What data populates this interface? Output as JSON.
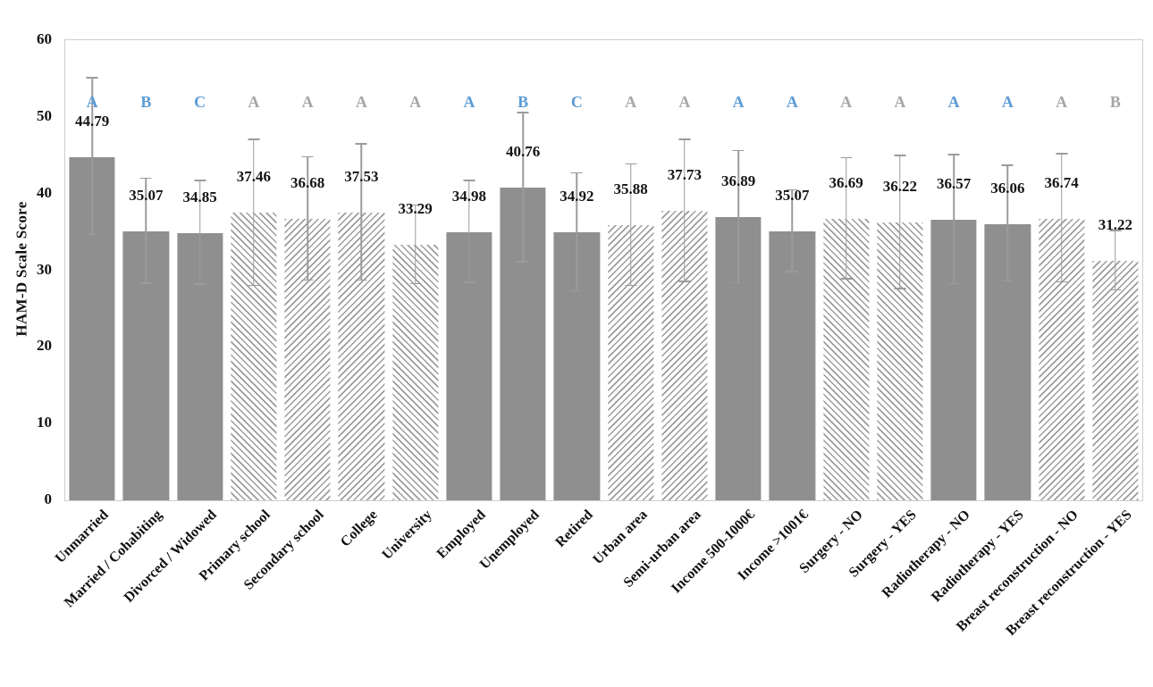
{
  "chart_data": {
    "type": "bar",
    "title": "",
    "xlabel": "",
    "ylabel": "HAM-D Scale Score",
    "ylim": [
      0,
      60
    ],
    "yticks": [
      "0",
      "10",
      "20",
      "30",
      "40",
      "50",
      "60"
    ],
    "grid": false,
    "legend": "none",
    "categories": [
      "Unmarried",
      "Married / Cohabiting",
      "Divorced / Widowed",
      "Primary school",
      "Secondary school",
      "College",
      "University",
      "Employed",
      "Unemployed",
      "Retired",
      "Urban area",
      "Semi-urban area",
      "Income 500-1000€",
      "Income >1001€",
      "Surgery - NO",
      "Surgery - YES",
      "Radiotherapy - NO",
      "Radiotherapy - YES",
      "Breast reconstruction - NO",
      "Breast reconstruction - YES"
    ],
    "values": [
      44.79,
      35.07,
      34.85,
      37.46,
      36.68,
      37.53,
      33.29,
      34.98,
      40.76,
      34.92,
      35.88,
      37.73,
      36.89,
      35.07,
      36.69,
      36.22,
      36.57,
      36.06,
      36.74,
      31.22
    ],
    "value_labels": [
      "44.79",
      "35.07",
      "34.85",
      "37.46",
      "36.68",
      "37.53",
      "33.29",
      "34.98",
      "40.76",
      "34.92",
      "35.88",
      "37.73",
      "36.89",
      "35.07",
      "36.69",
      "36.22",
      "36.57",
      "36.06",
      "36.74",
      "31.22"
    ],
    "error_top": [
      55.0,
      41.9,
      41.6,
      47.0,
      44.7,
      46.4,
      38.4,
      41.6,
      50.5,
      42.6,
      43.8,
      47.0,
      45.5,
      40.4,
      44.6,
      44.9,
      45.0,
      43.6,
      45.1,
      35.1
    ],
    "significance_letters": [
      {
        "text": "A",
        "color": "blue"
      },
      {
        "text": "B",
        "color": "blue"
      },
      {
        "text": "C",
        "color": "blue"
      },
      {
        "text": "A",
        "color": "gray"
      },
      {
        "text": "A",
        "color": "gray"
      },
      {
        "text": "A",
        "color": "gray"
      },
      {
        "text": "A",
        "color": "gray"
      },
      {
        "text": "A",
        "color": "blue"
      },
      {
        "text": "B",
        "color": "blue"
      },
      {
        "text": "C",
        "color": "blue"
      },
      {
        "text": "A",
        "color": "gray"
      },
      {
        "text": "A",
        "color": "gray"
      },
      {
        "text": "A",
        "color": "blue"
      },
      {
        "text": "A",
        "color": "blue"
      },
      {
        "text": "A",
        "color": "gray"
      },
      {
        "text": "A",
        "color": "gray"
      },
      {
        "text": "A",
        "color": "blue"
      },
      {
        "text": "A",
        "color": "blue"
      },
      {
        "text": "A",
        "color": "gray"
      },
      {
        "text": "B",
        "color": "gray"
      }
    ],
    "bar_styles": [
      "solid",
      "solid",
      "solid",
      "hatch-down",
      "hatch-up",
      "hatch-up",
      "hatch-down",
      "solid",
      "solid",
      "solid",
      "hatch-up",
      "hatch-up",
      "solid",
      "solid",
      "hatch-down",
      "hatch-down",
      "solid",
      "solid",
      "hatch-up",
      "hatch-up"
    ],
    "colors": {
      "bar_solid": "#8f8f8f",
      "hatch_stripe": "#9c9c9c",
      "error_bar": "#9b9b9b",
      "letter_blue": "#5b9bd5",
      "letter_gray": "#a6a6a6",
      "axis_border": "#cdcdcd",
      "text": "#111111"
    }
  }
}
